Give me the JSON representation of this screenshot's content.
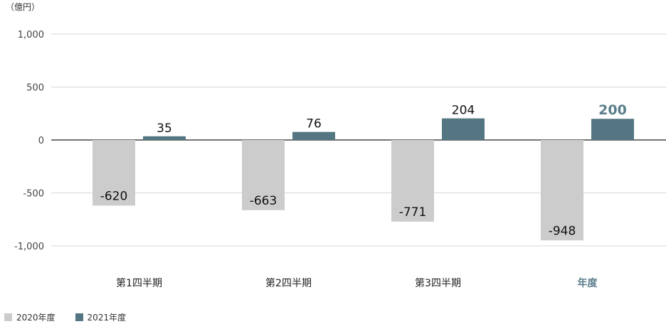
{
  "chart_data": {
    "type": "bar",
    "unit_label": "（億円）",
    "categories": [
      "第1四半期",
      "第2四半期",
      "第3四半期",
      "年度"
    ],
    "highlight_category": "年度",
    "yticks": [
      1000,
      500,
      0,
      -500,
      -1000
    ],
    "ytick_labels": [
      "1,000",
      "500",
      "0",
      "-500",
      "-1,000"
    ],
    "ylim": [
      -1000,
      1000
    ],
    "grid": true,
    "legend_position": "bottom-left",
    "series": [
      {
        "name": "2020年度",
        "color": "#cccccc",
        "values": [
          -620,
          -663,
          -771,
          -948
        ],
        "labels": [
          "-620",
          "-663",
          "-771",
          "-948"
        ]
      },
      {
        "name": "2021年度",
        "color": "#547683",
        "values": [
          35,
          76,
          204,
          200
        ],
        "labels": [
          "35",
          "76",
          "204",
          "200"
        ]
      }
    ],
    "highlight_color": "#5b7e8c"
  }
}
